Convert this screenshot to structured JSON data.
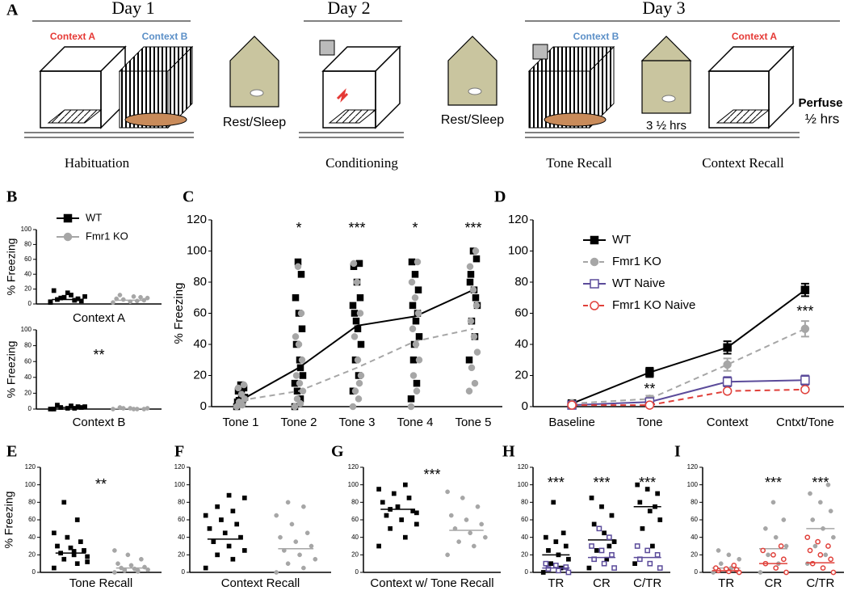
{
  "panel_labels": [
    "A",
    "B",
    "C",
    "D",
    "E",
    "F",
    "G",
    "H",
    "I"
  ],
  "diagram": {
    "days": [
      "Day 1",
      "Day 2",
      "Day 3"
    ],
    "contexts": [
      "Context A",
      "Context B",
      "Context B",
      "Context A"
    ],
    "rest_labels": [
      "Rest/Sleep",
      "Rest/Sleep"
    ],
    "interval": "3 ½ hrs",
    "perfuse": "Perfuse",
    "perfuse_time": "½ hrs",
    "phases": [
      "Habituation",
      "Conditioning",
      "Tone Recall",
      "Context Recall"
    ]
  },
  "chart_data": [
    {
      "type": "dot",
      "ylabel": "% Freezing",
      "xlabel": "Context A",
      "ylim": [
        0,
        100
      ],
      "yticks": [
        0,
        20,
        40,
        60,
        80,
        100
      ],
      "legend": "upper-left",
      "series": [
        {
          "name": "WT",
          "color": "#000000",
          "marker": "square",
          "values": [
            3,
            5,
            8,
            10,
            12,
            6,
            4,
            15,
            18,
            7,
            9,
            2,
            5
          ],
          "mean": 6
        },
        {
          "name": "Fmr1 KO",
          "color": "#a6a6a6",
          "marker": "circle",
          "values": [
            2,
            4,
            6,
            8,
            10,
            12,
            5,
            3,
            7,
            9
          ],
          "mean": 5
        }
      ]
    },
    {
      "type": "dot",
      "ylabel": "% Freezing",
      "xlabel": "Context B",
      "ylim": [
        0,
        100
      ],
      "yticks": [
        0,
        20,
        40,
        60,
        80,
        100
      ],
      "annotation": "**",
      "series": [
        {
          "color": "#000000",
          "marker": "square",
          "values": [
            0,
            1,
            2,
            3,
            4,
            5,
            2,
            1,
            0,
            3
          ],
          "mean": 2
        },
        {
          "color": "#a6a6a6",
          "marker": "circle",
          "values": [
            0,
            0,
            1,
            1,
            0,
            2,
            0,
            1
          ],
          "mean": 0.5
        }
      ]
    },
    {
      "type": "dot-line",
      "ylabel": "% Freezing",
      "categories": [
        "Tone 1",
        "Tone 2",
        "Tone 3",
        "Tone 4",
        "Tone 5"
      ],
      "ylim": [
        0,
        120
      ],
      "yticks": [
        0,
        20,
        40,
        60,
        80,
        100,
        120
      ],
      "annotations": [
        null,
        "*",
        "***",
        "*",
        "***"
      ],
      "series": [
        {
          "color": "#000000",
          "marker": "square",
          "dash": false,
          "values": [
            [
              0,
              2,
              4,
              6,
              8,
              10,
              12,
              14,
              3,
              5
            ],
            [
              0,
              5,
              10,
              20,
              30,
              40,
              50,
              60,
              70,
              85,
              93,
              15,
              25
            ],
            [
              10,
              20,
              30,
              40,
              50,
              60,
              70,
              80,
              90,
              92,
              55,
              65
            ],
            [
              5,
              15,
              30,
              45,
              55,
              65,
              75,
              85,
              93,
              60,
              40
            ],
            [
              30,
              45,
              55,
              65,
              75,
              85,
              95,
              100,
              80,
              70
            ]
          ],
          "means": [
            4,
            25,
            52,
            58,
            75
          ]
        },
        {
          "color": "#a6a6a6",
          "marker": "circle",
          "dash": true,
          "values": [
            [
              0,
              1,
              3,
              5,
              8,
              12,
              14,
              2
            ],
            [
              0,
              2,
              5,
              10,
              15,
              20,
              30,
              40,
              45,
              60,
              90
            ],
            [
              0,
              5,
              10,
              20,
              30,
              45,
              60,
              80,
              92,
              15
            ],
            [
              0,
              10,
              20,
              30,
              40,
              50,
              60,
              70,
              80,
              93
            ],
            [
              10,
              15,
              25,
              35,
              45,
              55,
              65,
              75,
              90,
              100
            ]
          ],
          "means": [
            4,
            10,
            25,
            42,
            50
          ]
        }
      ]
    },
    {
      "type": "line",
      "categories": [
        "Baseline",
        "Tone",
        "Context",
        "Cntxt/Tone"
      ],
      "ylim": [
        0,
        120
      ],
      "yticks": [
        0,
        20,
        40,
        60,
        80,
        100,
        120
      ],
      "legend": "upper-left",
      "annotations": [
        null,
        "**",
        null,
        "***"
      ],
      "series": [
        {
          "name": "WT",
          "color": "#000000",
          "marker": "square",
          "dash": false,
          "values": [
            2,
            22,
            38,
            75
          ],
          "errors": [
            1,
            3,
            4,
            4
          ]
        },
        {
          "name": "Fmr1 KO",
          "color": "#a6a6a6",
          "marker": "circle",
          "dash": true,
          "values": [
            2,
            5,
            27,
            50
          ],
          "errors": [
            1,
            2,
            4,
            5
          ]
        },
        {
          "name": "WT Naive",
          "color": "#5b4b9a",
          "marker": "open-square",
          "dash": false,
          "values": [
            1,
            3,
            16,
            17
          ],
          "errors": [
            1,
            1,
            3,
            3
          ]
        },
        {
          "name": "Fmr1 KO Naive",
          "color": "#e0403a",
          "marker": "open-circle",
          "dash": true,
          "values": [
            1,
            1,
            10,
            11
          ],
          "errors": [
            0.5,
            0.5,
            1,
            1
          ]
        }
      ]
    },
    {
      "type": "dot",
      "ylabel": "% Freezing",
      "xlabel": "Tone Recall",
      "ylim": [
        0,
        120
      ],
      "yticks": [
        0,
        20,
        40,
        60,
        80,
        100,
        120
      ],
      "annotation": "**",
      "series": [
        {
          "color": "#000000",
          "marker": "square",
          "values": [
            5,
            10,
            15,
            18,
            20,
            22,
            25,
            28,
            30,
            35,
            40,
            45,
            60,
            80,
            12,
            24
          ],
          "mean": 22
        },
        {
          "color": "#a6a6a6",
          "marker": "circle",
          "values": [
            0,
            1,
            2,
            3,
            4,
            5,
            6,
            8,
            10,
            15,
            20,
            25,
            2,
            3
          ],
          "mean": 5
        }
      ]
    },
    {
      "type": "dot",
      "xlabel": "Context Recall",
      "ylim": [
        0,
        120
      ],
      "yticks": [
        0,
        20,
        40,
        60,
        80,
        100,
        120
      ],
      "series": [
        {
          "color": "#000000",
          "marker": "square",
          "values": [
            5,
            15,
            20,
            25,
            30,
            35,
            40,
            45,
            50,
            55,
            60,
            65,
            70,
            75,
            85,
            88
          ],
          "mean": 38
        },
        {
          "color": "#a6a6a6",
          "marker": "circle",
          "values": [
            0,
            5,
            10,
            15,
            20,
            25,
            30,
            35,
            40,
            45,
            55,
            65,
            75,
            80
          ],
          "mean": 27
        }
      ]
    },
    {
      "type": "dot",
      "xlabel": "Context w/ Tone Recall",
      "ylim": [
        0,
        120
      ],
      "yticks": [
        0,
        20,
        40,
        60,
        80,
        100,
        120
      ],
      "annotation": "***",
      "series": [
        {
          "color": "#000000",
          "marker": "square",
          "values": [
            30,
            40,
            50,
            55,
            60,
            65,
            70,
            75,
            80,
            85,
            90,
            95,
            100,
            72,
            68
          ],
          "mean": 72
        },
        {
          "color": "#a6a6a6",
          "marker": "circle",
          "values": [
            20,
            30,
            35,
            40,
            45,
            50,
            55,
            60,
            65,
            75,
            85,
            92
          ],
          "mean": 48
        }
      ]
    },
    {
      "type": "dot",
      "categories": [
        "TR",
        "CR",
        "C/TR"
      ],
      "ylim": [
        0,
        120
      ],
      "yticks": [
        0,
        20,
        40,
        60,
        80,
        100,
        120
      ],
      "annotations": [
        "***",
        "***",
        "***"
      ],
      "series": [
        {
          "color": "#000000",
          "marker": "square",
          "values": [
            [
              0,
              5,
              10,
              15,
              20,
              25,
              30,
              35,
              40,
              45,
              80
            ],
            [
              5,
              15,
              25,
              35,
              45,
              55,
              65,
              75,
              85,
              30
            ],
            [
              10,
              30,
              50,
              60,
              70,
              80,
              90,
              95,
              100,
              75
            ]
          ],
          "means": [
            20,
            37,
            75
          ]
        },
        {
          "color": "#5b4b9a",
          "marker": "open-square",
          "values": [
            [
              0,
              2,
              4,
              6,
              8,
              10
            ],
            [
              5,
              10,
              15,
              20,
              25,
              30,
              40,
              50
            ],
            [
              5,
              10,
              15,
              20,
              25,
              30
            ]
          ],
          "means": [
            5,
            17,
            17
          ]
        }
      ]
    },
    {
      "type": "dot",
      "categories": [
        "TR",
        "CR",
        "C/TR"
      ],
      "ylim": [
        0,
        120
      ],
      "yticks": [
        0,
        20,
        40,
        60,
        80,
        100,
        120
      ],
      "annotations": [
        null,
        "***",
        "***"
      ],
      "series": [
        {
          "color": "#a6a6a6",
          "marker": "circle",
          "values": [
            [
              0,
              5,
              10,
              15,
              20,
              25
            ],
            [
              0,
              10,
              20,
              30,
              40,
              50,
              60,
              80,
              25
            ],
            [
              10,
              20,
              30,
              40,
              50,
              60,
              70,
              80,
              90,
              100
            ]
          ],
          "means": [
            5,
            27,
            50
          ]
        },
        {
          "color": "#e0403a",
          "marker": "open-circle",
          "values": [
            [
              0,
              1,
              2,
              3,
              4,
              5,
              8
            ],
            [
              0,
              5,
              10,
              15,
              20,
              25,
              30
            ],
            [
              0,
              5,
              10,
              15,
              20,
              25,
              30,
              35,
              40
            ]
          ],
          "means": [
            2,
            10,
            11
          ]
        }
      ]
    }
  ]
}
